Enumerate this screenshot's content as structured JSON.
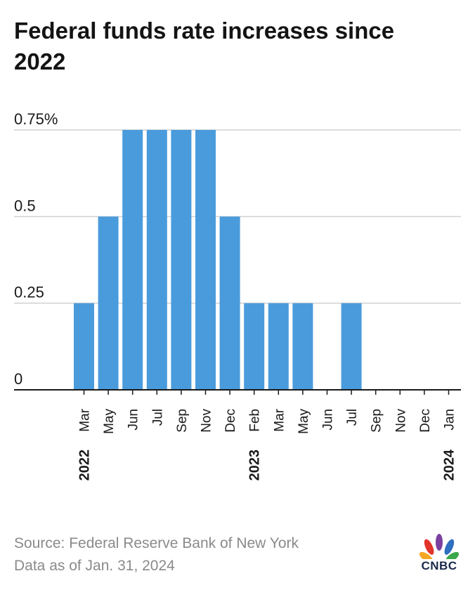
{
  "title": "Federal funds rate increases since 2022",
  "footer": {
    "source": "Source: Federal Reserve Bank of New York",
    "data_as_of": "Data as of Jan. 31, 2024"
  },
  "logo": {
    "text": "CNBC",
    "icon": "cnbc-peacock-icon"
  },
  "colors": {
    "bar": "#4a9bdc",
    "grid": "#d0d0d0",
    "axis": "#1a1a1a"
  },
  "chart_data": {
    "type": "bar",
    "categories": [
      "Mar",
      "May",
      "Jun",
      "Jul",
      "Sep",
      "Nov",
      "Dec",
      "Feb",
      "Mar",
      "May",
      "Jun",
      "Jul",
      "Sep",
      "Nov",
      "Dec",
      "Jan"
    ],
    "years": [
      {
        "label": "2022",
        "category_index": 0
      },
      {
        "label": "2023",
        "category_index": 7
      },
      {
        "label": "2024",
        "category_index": 15
      }
    ],
    "values": [
      0.25,
      0.5,
      0.75,
      0.75,
      0.75,
      0.75,
      0.5,
      0.25,
      0.25,
      0.25,
      0,
      0.25,
      0,
      0,
      0,
      0
    ],
    "y_ticks": [
      {
        "value": 0,
        "label": "0"
      },
      {
        "value": 0.25,
        "label": "0.25"
      },
      {
        "value": 0.5,
        "label": "0.5"
      },
      {
        "value": 0.75,
        "label": "0.75%"
      }
    ],
    "ylim": [
      0,
      0.75
    ],
    "grid": true
  }
}
